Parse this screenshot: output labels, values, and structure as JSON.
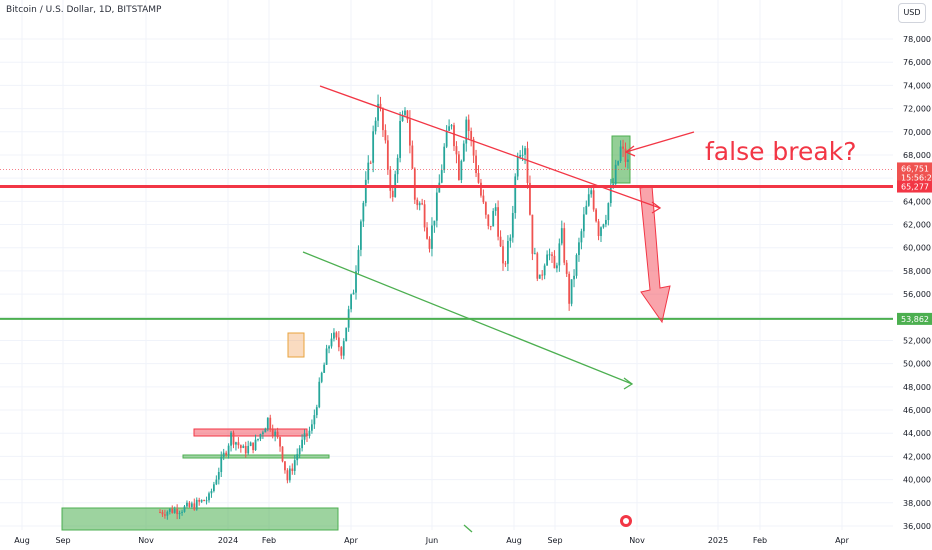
{
  "header": {
    "title": "Bitcoin / U.S. Dollar, 1D, BITSTAMP",
    "currency_button": "USD"
  },
  "colors": {
    "up": "#26a69a",
    "down": "#ef5350",
    "red_line": "#f23645",
    "green_line": "#4caf50"
  },
  "chart_data": {
    "type": "candlestick",
    "y_ticks": [
      36000,
      38000,
      40000,
      42000,
      44000,
      46000,
      48000,
      50000,
      52000,
      54000,
      56000,
      58000,
      60000,
      62000,
      64000,
      66000,
      68000,
      70000,
      72000,
      74000,
      76000,
      78000
    ],
    "y_tick_labels": [
      "36,000",
      "38,000",
      "40,000",
      "42,000",
      "44,000",
      "46,000",
      "48,000",
      "50,000",
      "52,000",
      "54,000",
      "56,000",
      "58,000",
      "60,000",
      "62,000",
      "64,000",
      "66,000",
      "68,000",
      "70,000",
      "72,000",
      "74,000",
      "76,000",
      "78,000"
    ],
    "x_labels": [
      "Aug",
      "Sep",
      "Nov",
      "2024",
      "Feb",
      "Apr",
      "Jun",
      "Aug",
      "Sep",
      "Nov",
      "2025",
      "Feb",
      "Apr"
    ],
    "price_labels": {
      "last": "66,751",
      "countdown": "15:56:22",
      "resistance": "65,277",
      "support": "53,862"
    },
    "horizontal_levels": {
      "resistance": 65277,
      "support": 53862,
      "current": 66751
    },
    "annotation": "false break?",
    "anchors": [
      [
        0,
        37200
      ],
      [
        12,
        37600
      ],
      [
        20,
        38400
      ],
      [
        25,
        41500
      ],
      [
        29,
        43800
      ],
      [
        34,
        42500
      ],
      [
        39,
        43100
      ],
      [
        44,
        45200
      ],
      [
        49,
        43000
      ],
      [
        52,
        40000
      ],
      [
        57,
        42800
      ],
      [
        62,
        44500
      ],
      [
        66,
        49000
      ],
      [
        70,
        52500
      ],
      [
        74,
        51200
      ],
      [
        79,
        56500
      ],
      [
        82,
        62500
      ],
      [
        86,
        68000
      ],
      [
        89,
        73000
      ],
      [
        92,
        68500
      ],
      [
        95,
        64000
      ],
      [
        98,
        70500
      ],
      [
        101,
        71500
      ],
      [
        104,
        64200
      ],
      [
        107,
        63500
      ],
      [
        110,
        60500
      ],
      [
        113,
        64000
      ],
      [
        116,
        68500
      ],
      [
        119,
        71000
      ],
      [
        122,
        66500
      ],
      [
        125,
        71200
      ],
      [
        128,
        68000
      ],
      [
        131,
        64500
      ],
      [
        134,
        61500
      ],
      [
        137,
        63500
      ],
      [
        140,
        58000
      ],
      [
        143,
        61000
      ],
      [
        146,
        68500
      ],
      [
        149,
        69000
      ],
      [
        152,
        60000
      ],
      [
        155,
        57000
      ],
      [
        158,
        60000
      ],
      [
        161,
        58000
      ],
      [
        164,
        61000
      ],
      [
        167,
        55500
      ],
      [
        170,
        59000
      ],
      [
        173,
        62500
      ],
      [
        176,
        65000
      ],
      [
        179,
        61500
      ],
      [
        182,
        63000
      ],
      [
        185,
        65500
      ],
      [
        188,
        68500
      ],
      [
        191,
        67200
      ]
    ]
  }
}
